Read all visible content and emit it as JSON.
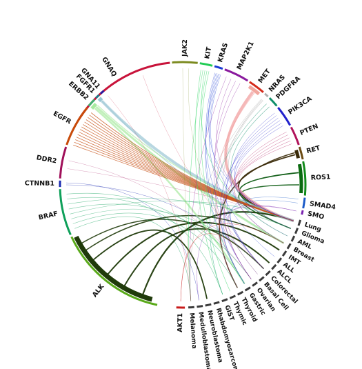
{
  "genes": [
    {
      "name": "GNAQ",
      "color": "#c8133a"
    },
    {
      "name": "JAK2",
      "color": "#7b8a1e"
    },
    {
      "name": "KIT",
      "color": "#22cc55"
    },
    {
      "name": "KRAS",
      "color": "#1a3ad4"
    },
    {
      "name": "MAP2K1",
      "color": "#8a1a9e"
    },
    {
      "name": "MET",
      "color": "#d42a1a"
    },
    {
      "name": "NRAS",
      "color": "#b0b0b0"
    },
    {
      "name": "PDGFRA",
      "color": "#0f8f6a"
    },
    {
      "name": "PIK3CA",
      "color": "#2222cc"
    },
    {
      "name": "PTEN",
      "color": "#b0135a"
    },
    {
      "name": "RET",
      "color": "#6b4a12"
    },
    {
      "name": "ROS1",
      "color": "#108a1a"
    },
    {
      "name": "SMAD4",
      "color": "#1a5ac8"
    },
    {
      "name": "SMO",
      "color": "#7a22b0"
    },
    {
      "name": "AKT1",
      "color": "#c81a1a"
    },
    {
      "name": "ALK",
      "color": "#5aaa1a"
    },
    {
      "name": "BRAF",
      "color": "#0fa05a"
    },
    {
      "name": "CTNNB1",
      "color": "#1a2ab0"
    },
    {
      "name": "DDR2",
      "color": "#a0105a"
    },
    {
      "name": "EGFR",
      "color": "#c84a0a"
    },
    {
      "name": "ERBB2",
      "color": "#40b070"
    },
    {
      "name": "FGFR1",
      "color": "#1a7a8a"
    },
    {
      "name": "GNA11",
      "color": "#2a1aa0"
    }
  ],
  "cancers": [
    "Melanoma",
    "Medulloblastoma",
    "Neuroblastoma",
    "Rhabdomyosarcoma",
    "GIST",
    "Thymic",
    "Thyroid",
    "Gastric",
    "Ovarian",
    "Basal Cell",
    "Colorectal",
    "ALCL",
    "ALL",
    "IMT",
    "Breast",
    "AML",
    "Glioma",
    "Lung"
  ],
  "cancer_color": "#3a3a3a"
}
